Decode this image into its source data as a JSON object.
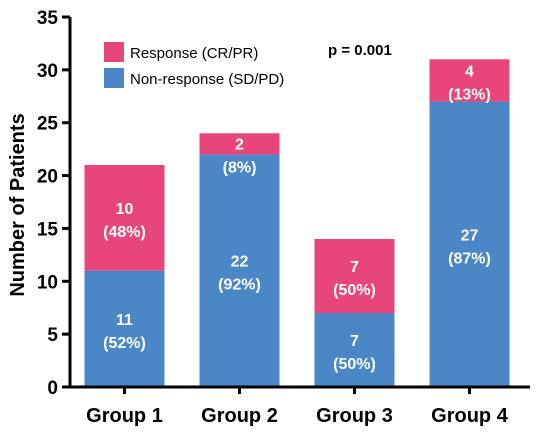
{
  "chart_data": {
    "type": "bar",
    "stacked": true,
    "categories": [
      "Group 1",
      "Group 2",
      "Group 3",
      "Group 4"
    ],
    "series": [
      {
        "name": "Non-response (SD/PD)",
        "color": "#4b87c6",
        "values": [
          11,
          22,
          7,
          27
        ],
        "labels": [
          [
            "11",
            "(52%)"
          ],
          [
            "22",
            "(92%)"
          ],
          [
            "7",
            "(50%)"
          ],
          [
            "27",
            "(87%)"
          ]
        ]
      },
      {
        "name": "Response (CR/PR)",
        "color": "#e8457a",
        "values": [
          10,
          2,
          7,
          4
        ],
        "labels": [
          [
            "10",
            "(48%)"
          ],
          [
            "2",
            "(8%)"
          ],
          [
            "7",
            "(50%)"
          ],
          [
            "4",
            "(13%)"
          ]
        ]
      }
    ],
    "ylabel": "Number of Patients",
    "xlabel": "",
    "ylim": [
      0,
      35
    ],
    "yticks": [
      0,
      5,
      10,
      15,
      20,
      25,
      30,
      35
    ],
    "annotation": "p = 0.001",
    "legend": {
      "placement": "top-left",
      "items": [
        {
          "label": "Response (CR/PR)",
          "color": "#e8457a"
        },
        {
          "label": "Non-response (SD/PD)",
          "color": "#4b87c6"
        }
      ]
    },
    "grid": false
  }
}
